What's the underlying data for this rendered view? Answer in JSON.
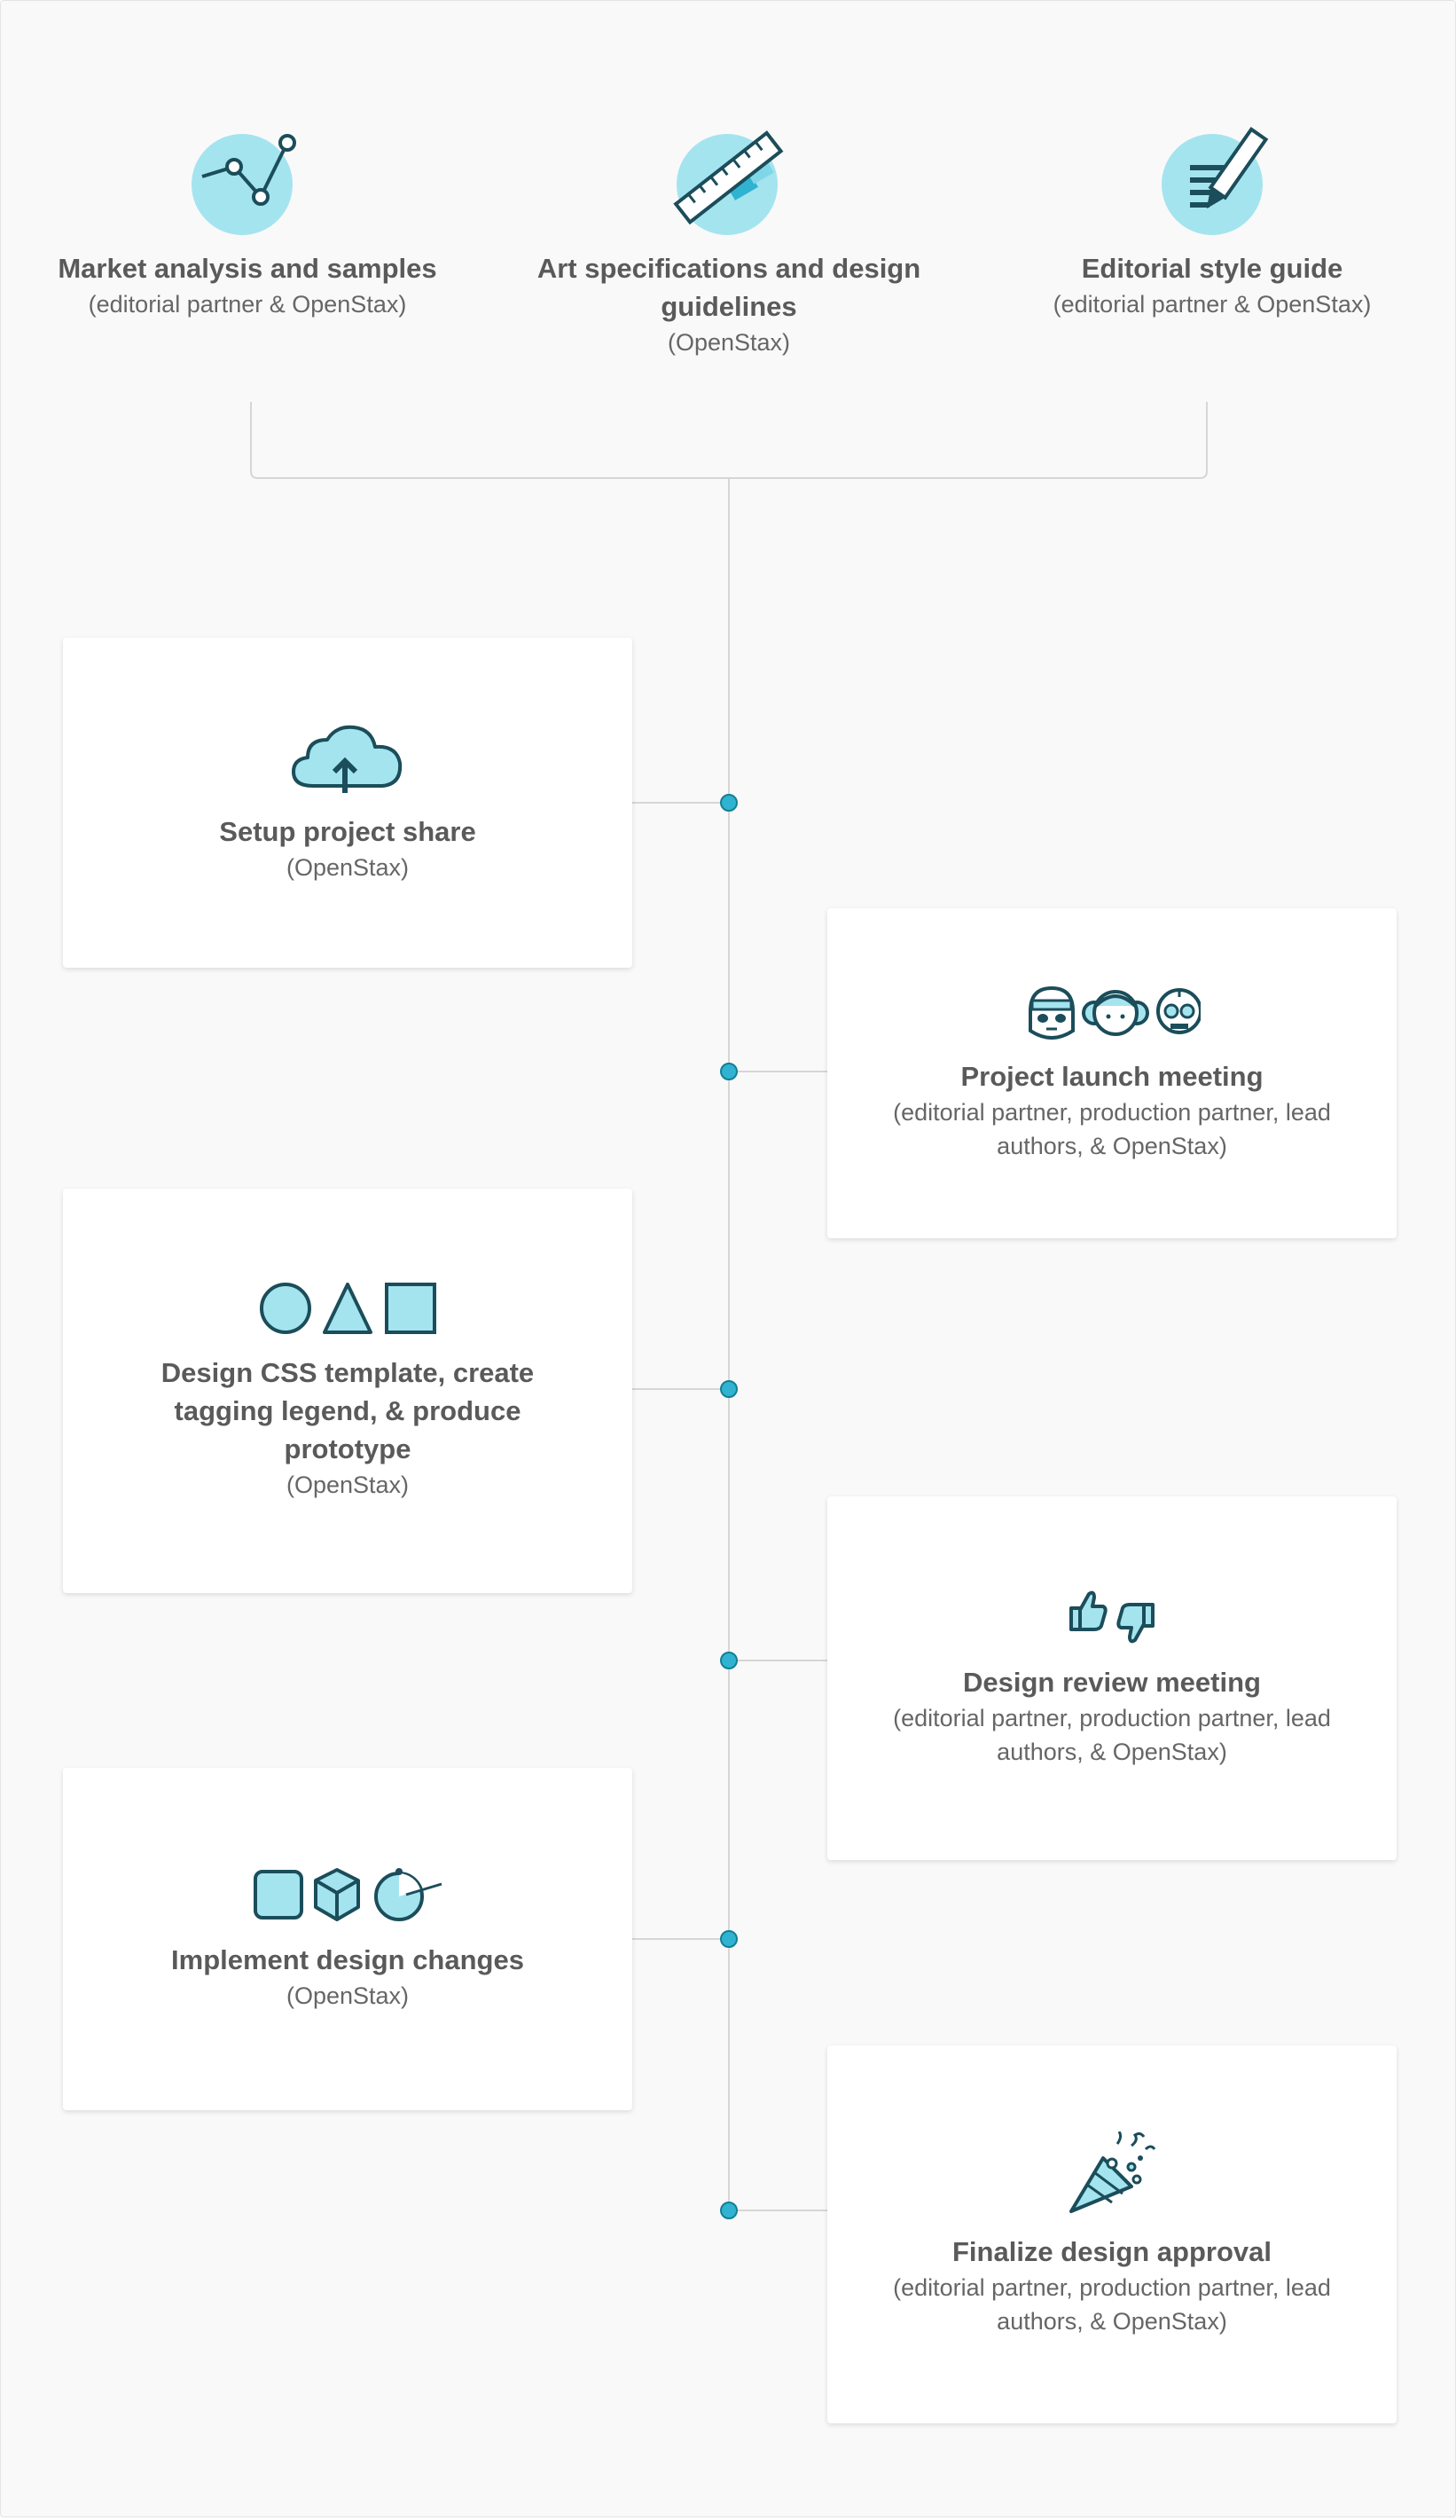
{
  "colors": {
    "accent_fill": "#a4e4ef",
    "accent_stroke": "#1b4d5a",
    "dot_fill": "#2fb3d1",
    "line": "#d6d6d6",
    "title_text": "#5a5a5a"
  },
  "inputs": [
    {
      "title": "Market analysis and samples",
      "sub": "(editorial partner & OpenStax)",
      "icon": "line-chart-icon"
    },
    {
      "title": "Art specifications and design guidelines",
      "sub": "(OpenStax)",
      "icon": "ruler-pencil-icon"
    },
    {
      "title": "Editorial style guide",
      "sub": "(editorial partner & OpenStax)",
      "icon": "document-pencil-icon"
    }
  ],
  "steps": [
    {
      "title": "Setup project share",
      "sub": "(OpenStax)",
      "icon": "cloud-upload-icon",
      "side": "left"
    },
    {
      "title": "Project launch meeting",
      "sub": "(editorial partner, production partner, lead authors, & OpenStax)",
      "icon": "people-icon",
      "side": "right"
    },
    {
      "title": "Design CSS template, create tagging legend, & produce prototype",
      "sub": "(OpenStax)",
      "icon": "shapes-icon",
      "side": "left"
    },
    {
      "title": "Design review meeting",
      "sub": "(editorial partner, production partner, lead authors, & OpenStax)",
      "icon": "thumbs-icon",
      "side": "right"
    },
    {
      "title": "Implement design changes",
      "sub": "(OpenStax)",
      "icon": "design-tools-icon",
      "side": "left"
    },
    {
      "title": "Finalize design approval",
      "sub": "(editorial partner, production partner, lead authors, & OpenStax)",
      "icon": "party-popper-icon",
      "side": "right"
    }
  ]
}
